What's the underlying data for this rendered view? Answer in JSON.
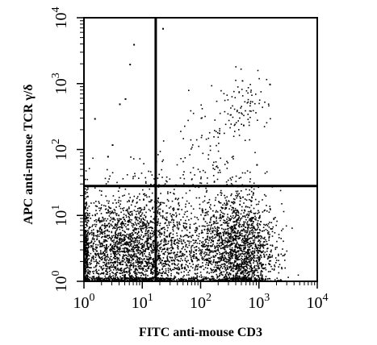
{
  "chart_data": {
    "type": "scatter",
    "title": "",
    "xlabel": "FITC anti-mouse CD3",
    "ylabel": "APC anti-mouse TCR γ/δ",
    "x_scale": "log",
    "y_scale": "log",
    "xlim": [
      1,
      10000
    ],
    "ylim": [
      1,
      10000
    ],
    "x_ticks": [
      {
        "base": "10",
        "exp": "0"
      },
      {
        "base": "10",
        "exp": "1"
      },
      {
        "base": "10",
        "exp": "2"
      },
      {
        "base": "10",
        "exp": "3"
      },
      {
        "base": "10",
        "exp": "4"
      }
    ],
    "y_ticks": [
      {
        "base": "10",
        "exp": "0"
      },
      {
        "base": "10",
        "exp": "1"
      },
      {
        "base": "10",
        "exp": "2"
      },
      {
        "base": "10",
        "exp": "3"
      },
      {
        "base": "10",
        "exp": "4"
      }
    ],
    "quadrant_gates": {
      "x": 17,
      "y": 28
    },
    "grid": false,
    "legend": "none",
    "populations": [
      {
        "center_x": 5,
        "center_y": 2.8,
        "spread_x_decades": 0.55,
        "spread_y_decades": 0.45,
        "count": 2600
      },
      {
        "center_x": 450,
        "center_y": 3.2,
        "spread_x_decades": 0.3,
        "spread_y_decades": 0.42,
        "count": 1700
      },
      {
        "center_x": 70,
        "center_y": 2.2,
        "spread_x_decades": 0.55,
        "spread_y_decades": 0.42,
        "count": 700
      },
      {
        "center_x": 500,
        "center_y": 500,
        "spread_x_decades": 0.22,
        "spread_y_decades": 0.22,
        "count": 90
      },
      {
        "center_x": 150,
        "center_y": 120,
        "spread_x_decades": 0.35,
        "spread_y_decades": 0.35,
        "count": 80
      },
      {
        "center_x": 40,
        "center_y": 40,
        "spread_x_decades": 0.4,
        "spread_y_decades": 0.3,
        "count": 60
      }
    ],
    "sparse_points": [
      {
        "x": 7,
        "y": 4000
      },
      {
        "x": 6,
        "y": 2000
      },
      {
        "x": 5,
        "y": 600
      },
      {
        "x": 4,
        "y": 500
      },
      {
        "x": 22,
        "y": 7000
      },
      {
        "x": 3,
        "y": 120
      },
      {
        "x": 2.5,
        "y": 80
      },
      {
        "x": 1500,
        "y": 1000
      },
      {
        "x": 900,
        "y": 60
      },
      {
        "x": 2,
        "y": 1.05
      },
      {
        "x": 8,
        "y": 1.05
      },
      {
        "x": 1.5,
        "y": 300
      }
    ]
  }
}
